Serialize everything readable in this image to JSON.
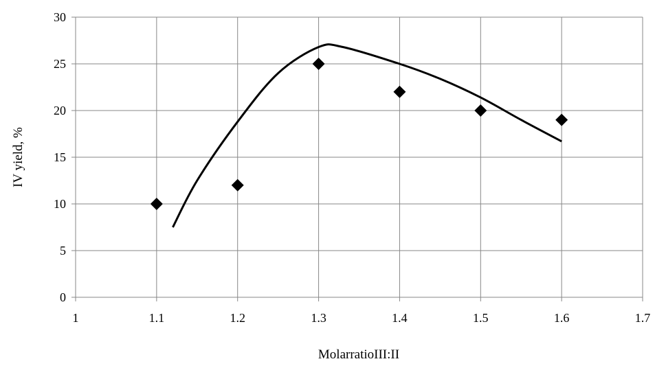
{
  "chart_data": {
    "type": "scatter",
    "xlabel": "MolarratioIII:II",
    "ylabel": "IV yield, %",
    "xlim": [
      1,
      1.7
    ],
    "ylim": [
      0,
      30
    ],
    "x_ticks": [
      "1",
      "1.1",
      "1.2",
      "1.3",
      "1.4",
      "1.5",
      "1.6",
      "1.7"
    ],
    "y_ticks": [
      "0",
      "5",
      "10",
      "15",
      "20",
      "25",
      "30"
    ],
    "grid": true,
    "legend": "none",
    "series": [
      {
        "kind": "points",
        "marker": "diamond",
        "x": [
          1.1,
          1.2,
          1.3,
          1.4,
          1.5,
          1.6
        ],
        "y": [
          10,
          12,
          25,
          22,
          20,
          19
        ]
      },
      {
        "kind": "smooth-line",
        "x": [
          1.12,
          1.15,
          1.2,
          1.25,
          1.3,
          1.33,
          1.4,
          1.45,
          1.5,
          1.55,
          1.6
        ],
        "y": [
          7.5,
          12.5,
          18.8,
          24.0,
          26.8,
          26.8,
          25.0,
          23.4,
          21.4,
          19.0,
          16.7
        ]
      }
    ],
    "colors": {
      "marker": "#000000",
      "line": "#000000",
      "grid": "#878787"
    }
  }
}
